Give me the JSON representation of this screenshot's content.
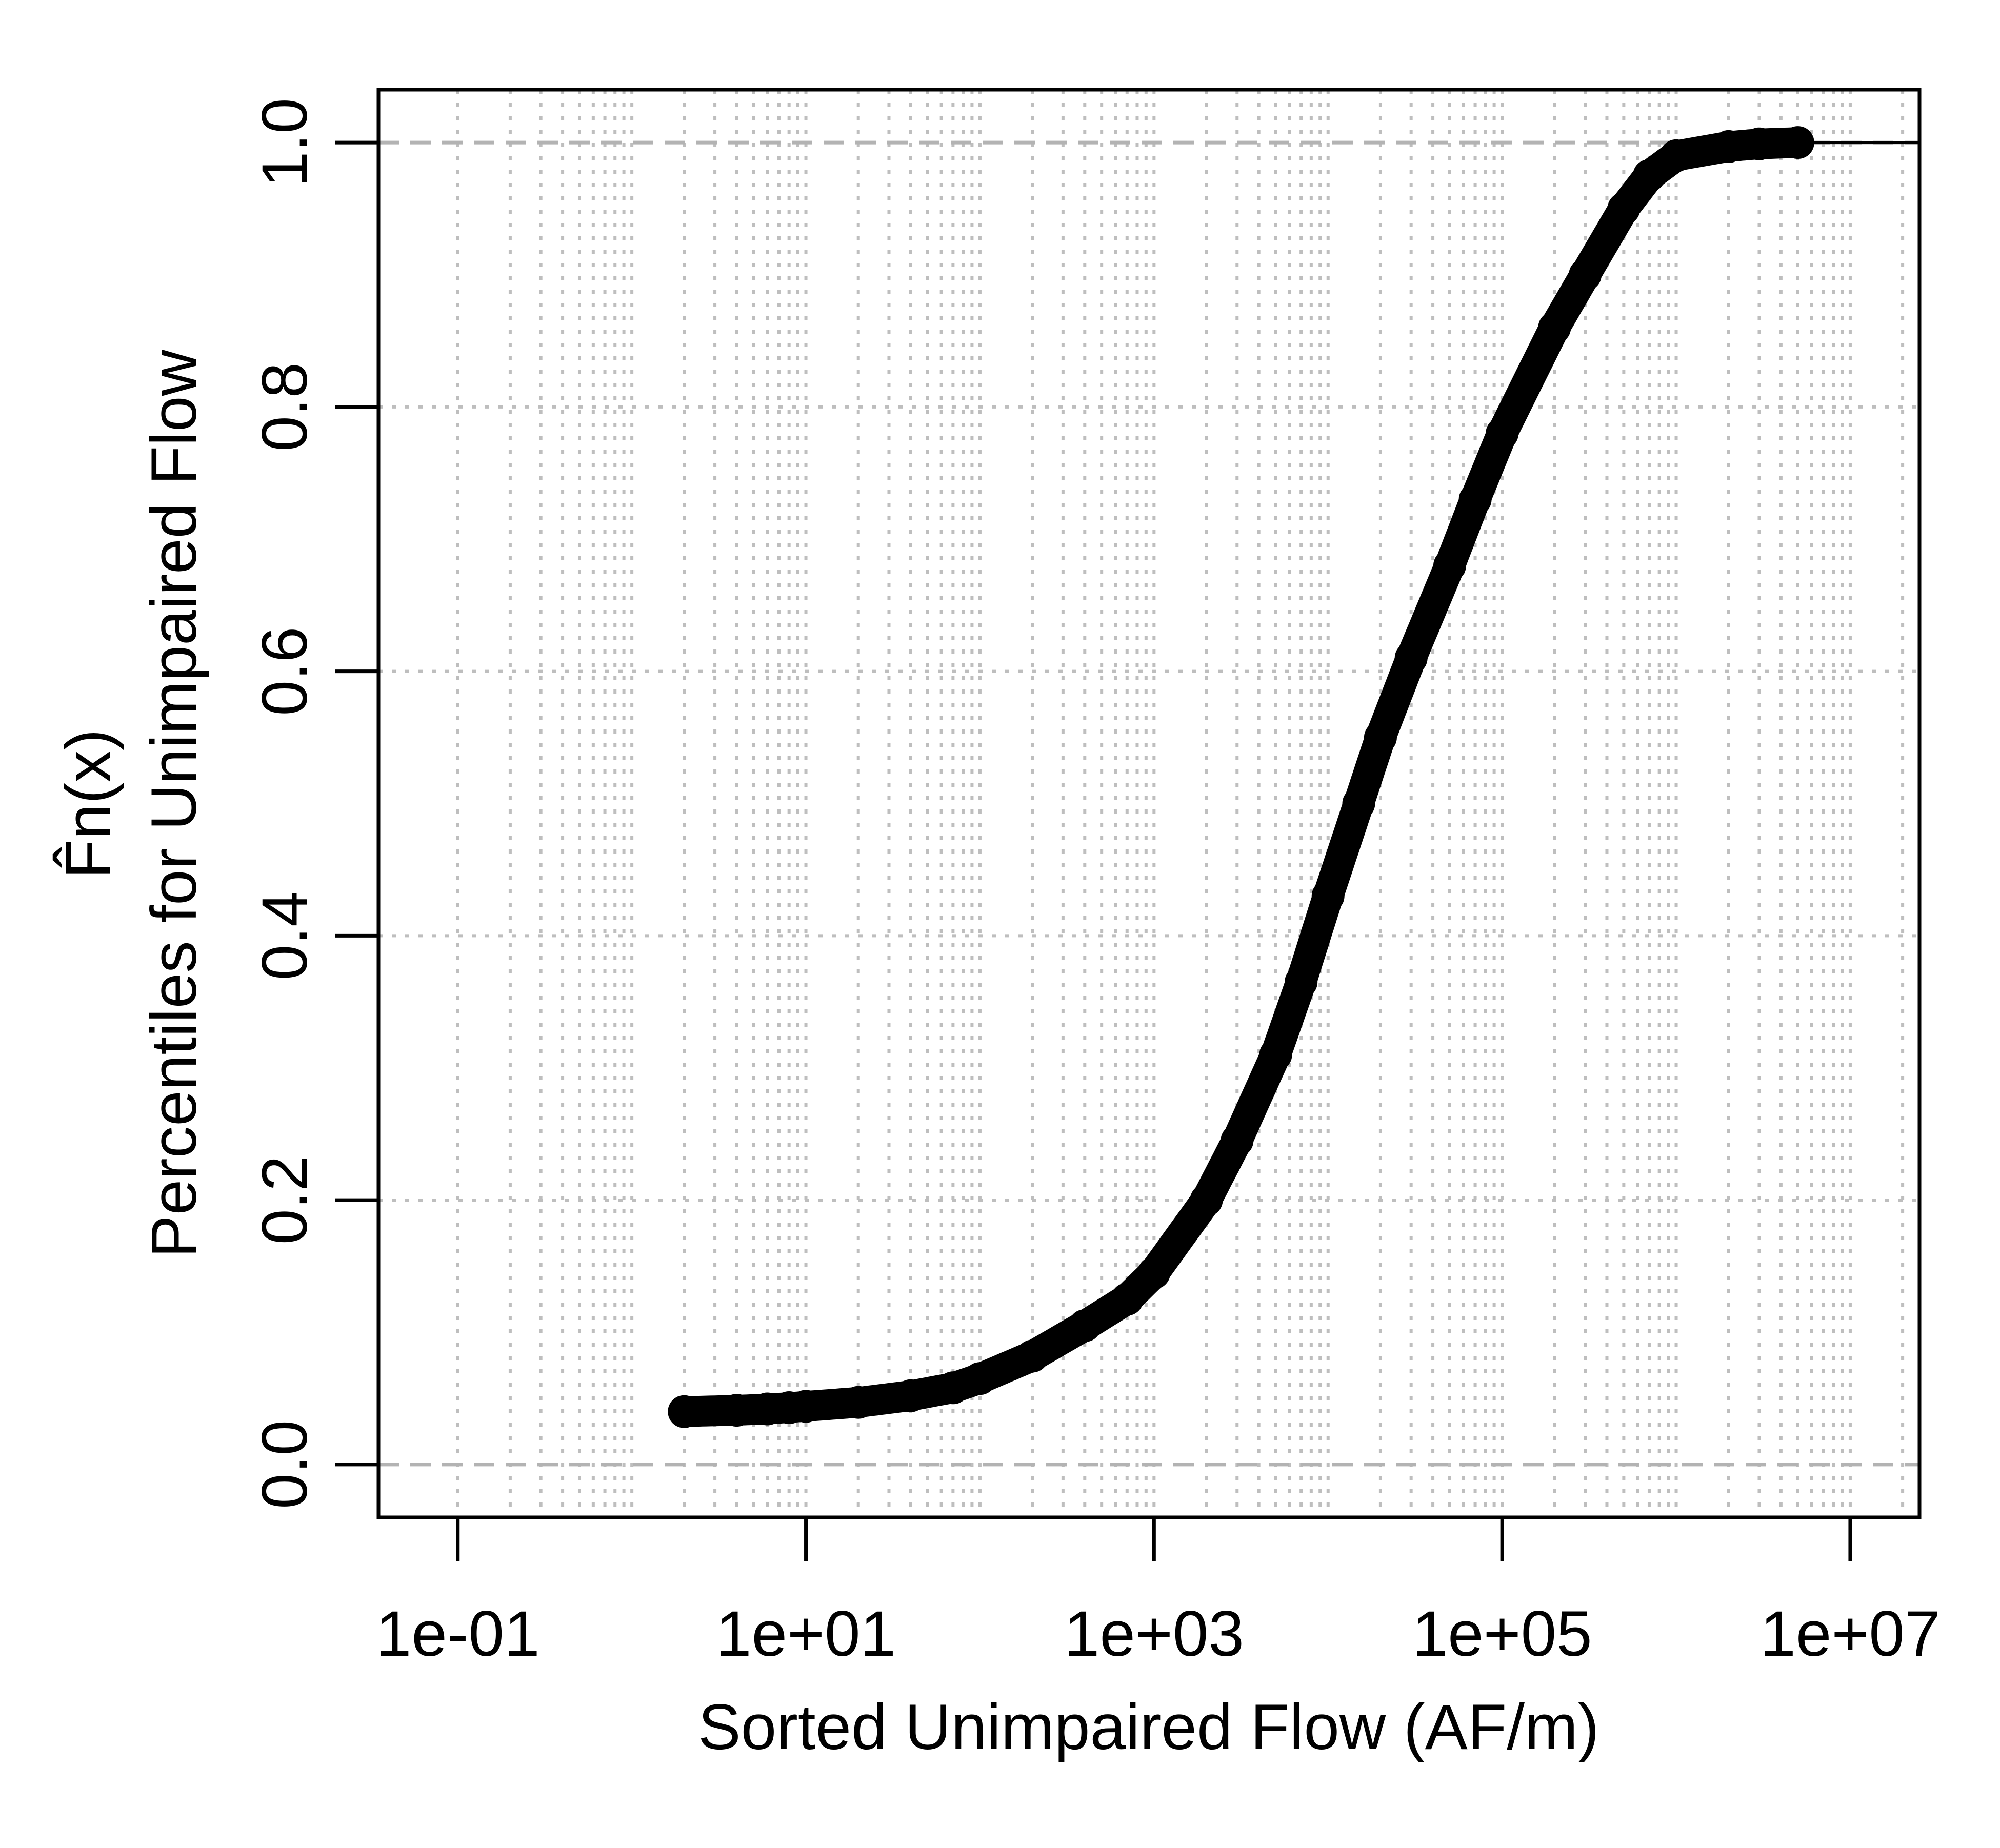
{
  "chart_data": {
    "type": "line",
    "subtype": "empirical-cdf",
    "title": "",
    "xlabel": "Sorted Unimpaired Flow (AF/m)",
    "ylabel": "Percentiles for Unimpaired Flow",
    "ylabel_top": "F̂n(x)",
    "x_scale": "log10",
    "xlim": [
      0.035,
      25000000
    ],
    "ylim": [
      -0.04,
      1.04
    ],
    "x_ticks": [
      0.1,
      10,
      1000,
      100000,
      10000000
    ],
    "x_tick_labels": [
      "1e-01",
      "1e+01",
      "1e+03",
      "1e+05",
      "1e+07"
    ],
    "y_ticks": [
      0.0,
      0.2,
      0.4,
      0.6,
      0.8,
      1.0
    ],
    "y_tick_labels": [
      "0.0",
      "0.2",
      "0.4",
      "0.6",
      "0.8",
      "1.0"
    ],
    "grid": "dotted gray at each log decade subdivision and y ticks",
    "reference_lines": [
      0,
      1
    ],
    "series": [
      {
        "marker": "filled-circle",
        "color": "#000000",
        "x": [
          2,
          4,
          6,
          8,
          10,
          20,
          40,
          70,
          100,
          200,
          400,
          700,
          1000,
          2000,
          3000,
          5000,
          7000,
          10000,
          15000,
          20000,
          30000,
          50000,
          70000,
          100000,
          200000,
          300000,
          500000,
          700000,
          1000000,
          2000000,
          3000000,
          5000000
        ],
        "y": [
          0.04,
          0.041,
          0.042,
          0.043,
          0.044,
          0.047,
          0.052,
          0.058,
          0.065,
          0.082,
          0.105,
          0.125,
          0.145,
          0.2,
          0.245,
          0.31,
          0.365,
          0.43,
          0.5,
          0.55,
          0.61,
          0.68,
          0.73,
          0.78,
          0.86,
          0.9,
          0.95,
          0.975,
          0.99,
          0.997,
          0.999,
          1.0
        ]
      }
    ]
  }
}
